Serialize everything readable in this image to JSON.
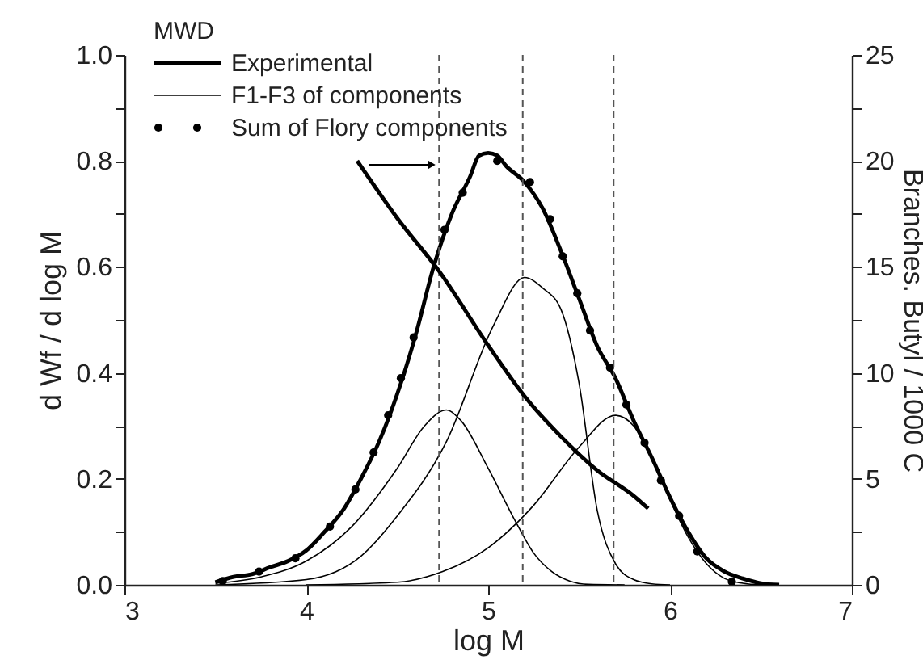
{
  "chart_data": {
    "type": "line",
    "xlabel": "log M",
    "ylabel": "d Wf / d log M",
    "y2label": "Branches. Butyl / 1000 C",
    "legend_title": "MWD",
    "legend": "top left",
    "xlim": [
      3,
      7
    ],
    "xticks": [
      3,
      4,
      5,
      6,
      7
    ],
    "ylim": [
      0,
      1.0
    ],
    "yticks": [
      {
        "value": 0,
        "label": "0.0"
      },
      {
        "value": 0.1,
        "label": null
      },
      {
        "value": 0.2,
        "label": "0.2"
      },
      {
        "value": 0.3,
        "label": null
      },
      {
        "value": 0.4,
        "label": "0.4"
      },
      {
        "value": 0.5,
        "label": null
      },
      {
        "value": 0.6,
        "label": "0.6"
      },
      {
        "value": 0.7,
        "label": null
      },
      {
        "value": 0.8,
        "label": "0.8"
      },
      {
        "value": 0.9,
        "label": null
      },
      {
        "value": 1.0,
        "label": "1.0"
      }
    ],
    "y2lim": [
      0,
      25
    ],
    "y2ticks": [
      0,
      {
        "value": 2.5,
        "label": null
      },
      5,
      {
        "value": 7.5,
        "label": null
      },
      10,
      {
        "value": 12.5,
        "label": null
      },
      15,
      {
        "value": 17.5,
        "label": null
      },
      20,
      {
        "value": 22.5,
        "label": null
      },
      25
    ],
    "series": [
      {
        "name": "Experimental",
        "color": "#000000",
        "line_style": "solid",
        "x": [
          3.5,
          3.6,
          3.7,
          3.8,
          3.9,
          4.0,
          4.1,
          4.2,
          4.3,
          4.4,
          4.5,
          4.6,
          4.7,
          4.8,
          4.9,
          4.95,
          5.0,
          5.05,
          5.1,
          5.2,
          5.3,
          5.4,
          5.5,
          5.6,
          5.7,
          5.8,
          5.9,
          6.0,
          6.1,
          6.2,
          6.3,
          6.4,
          6.5,
          6.6
        ],
        "values": [
          0.005,
          0.015,
          0.02,
          0.033,
          0.045,
          0.065,
          0.1,
          0.14,
          0.2,
          0.27,
          0.36,
          0.47,
          0.6,
          0.7,
          0.77,
          0.81,
          0.815,
          0.81,
          0.79,
          0.76,
          0.71,
          0.63,
          0.54,
          0.45,
          0.39,
          0.31,
          0.24,
          0.165,
          0.1,
          0.05,
          0.025,
          0.012,
          0.003,
          0
        ]
      },
      {
        "name": "F1-F3 of components",
        "color": "#000000",
        "line_style": "solid",
        "x": [
          3.5,
          3.75,
          4.0,
          4.25,
          4.5,
          4.65,
          4.77,
          4.85,
          5.0,
          5.15,
          5.25,
          5.35,
          5.45,
          5.55,
          5.75
        ],
        "values": [
          0.003,
          0.015,
          0.045,
          0.11,
          0.22,
          0.3,
          0.33,
          0.31,
          0.22,
          0.12,
          0.06,
          0.025,
          0.007,
          0.001,
          0
        ]
      },
      {
        "color": "#000000",
        "line_style": "solid",
        "x": [
          3.5,
          4.0,
          4.3,
          4.5,
          4.77,
          5.03,
          5.2,
          5.3,
          5.4,
          5.5,
          5.6,
          5.7,
          5.8,
          5.9,
          6.0
        ],
        "values": [
          0,
          0.01,
          0.054,
          0.13,
          0.27,
          0.49,
          0.58,
          0.56,
          0.52,
          0.38,
          0.14,
          0.04,
          0.01,
          0.002,
          0
        ]
      },
      {
        "color": "#000000",
        "line_style": "solid",
        "x": [
          4.0,
          4.5,
          4.75,
          5.0,
          5.25,
          5.5,
          5.7,
          5.8,
          5.9,
          6.0,
          6.1,
          6.2,
          6.3,
          6.4,
          6.5
        ],
        "values": [
          0,
          0.005,
          0.025,
          0.07,
          0.15,
          0.26,
          0.32,
          0.3,
          0.24,
          0.16,
          0.09,
          0.04,
          0.012,
          0.003,
          0
        ]
      },
      {
        "name": "Sum of Flory components",
        "color": "#000000",
        "type": "scatter",
        "marker": "circle",
        "x": [
          3.54,
          3.74,
          3.94,
          4.13,
          4.27,
          4.37,
          4.45,
          4.52,
          4.59,
          4.76,
          4.86,
          5.05,
          5.23,
          5.34,
          5.41,
          5.49,
          5.56,
          5.67,
          5.76,
          5.86,
          5.95,
          6.05,
          6.15,
          6.34
        ],
        "values": [
          0.007,
          0.025,
          0.05,
          0.11,
          0.18,
          0.25,
          0.32,
          0.39,
          0.467,
          0.67,
          0.74,
          0.8,
          0.76,
          0.69,
          0.62,
          0.55,
          0.48,
          0.41,
          0.34,
          0.268,
          0.197,
          0.13,
          0.063,
          0.006
        ]
      },
      {
        "color": "#000000",
        "line_style": "solid",
        "axis": "y2",
        "x": [
          4.28,
          4.5,
          4.73,
          5.0,
          5.2,
          5.4,
          5.6,
          5.8,
          5.88
        ],
        "values": [
          20,
          17.3,
          14.8,
          11.3,
          8.9,
          7.0,
          5.4,
          4.2,
          3.6
        ]
      }
    ],
    "grid": false,
    "ref_lines": [
      {
        "axis": "x",
        "value": 4.73,
        "color": "#555555",
        "line_style": "dashed"
      },
      {
        "axis": "x",
        "value": 5.19,
        "color": "#555555",
        "line_style": "dashed"
      },
      {
        "axis": "x",
        "value": 5.69,
        "color": "#555555",
        "line_style": "dashed"
      }
    ]
  }
}
